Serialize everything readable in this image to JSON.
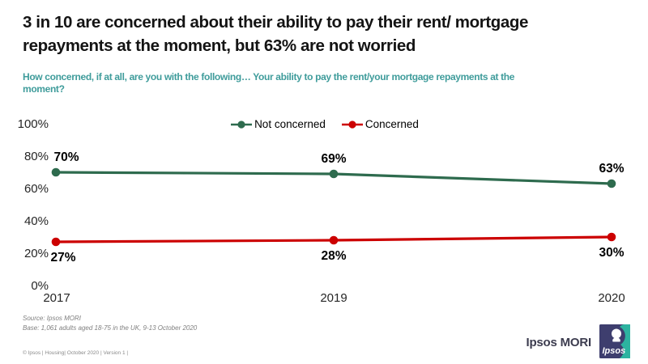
{
  "slide": {
    "title_lines": [
      "3 in 10 are concerned about their ability to pay their rent/ mortgage",
      "repayments at the moment, but 63% are not worried"
    ],
    "subtitle_lines": [
      "How concerned, if at all, are you with the following… Your ability to pay the rent/your mortgage repayments at the",
      "moment?"
    ],
    "source_lines": [
      "Source: Ipsos MORI",
      "Base: 1,061 adults aged 18-75 in the UK, 9-13 October 2020"
    ],
    "copyright": "© Ipsos | Housing| October 2020 | Version 1 |",
    "brand_wordmark": "Ipsos MORI",
    "logo_text": "Ipsos"
  },
  "colors": {
    "title_text": "#141414",
    "subtitle_teal": "#3F9C9B",
    "not_concerned_green": "#2E6B4E",
    "concerned_red": "#CC0000",
    "axis_text": "#262626",
    "data_label_text": "#000000",
    "source_gray": "#7f7f7f",
    "brand_text": "#3C3C4F",
    "logo_indigo": "#3E3E6E",
    "logo_teal": "#2DB3A0"
  },
  "chart_data": {
    "type": "line",
    "title": "",
    "xlabel": "",
    "ylabel": "",
    "x": [
      "2017",
      "2019",
      "2020"
    ],
    "series": [
      {
        "name": "Not concerned",
        "values": [
          70,
          69,
          63
        ],
        "color": "#2E6B4E",
        "label_position": "above"
      },
      {
        "name": "Concerned",
        "values": [
          27,
          28,
          30
        ],
        "color": "#CC0000",
        "label_position": "below"
      }
    ],
    "yticks": [
      100,
      80,
      60,
      40,
      20,
      0
    ],
    "ylim": [
      0,
      100
    ],
    "unit_suffix": "%",
    "grid": false,
    "data_labels": true,
    "legend_position": "top-center"
  }
}
